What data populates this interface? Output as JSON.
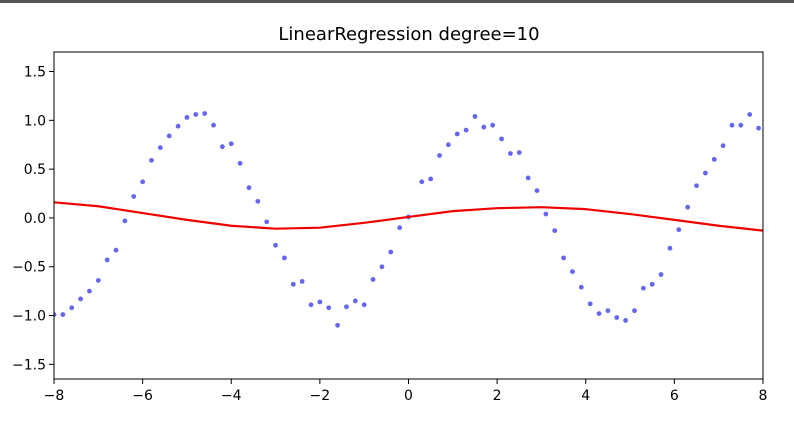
{
  "chart_data": {
    "type": "scatter",
    "title": "LinearRegression degree=10",
    "xlabel": "",
    "ylabel": "",
    "xlim": [
      -8,
      8
    ],
    "ylim": [
      -1.65,
      1.7
    ],
    "x_ticks": [
      -8,
      -6,
      -4,
      -2,
      0,
      2,
      4,
      6,
      8
    ],
    "x_tick_labels": [
      "−8",
      "−6",
      "−4",
      "−2",
      "0",
      "2",
      "4",
      "6",
      "8"
    ],
    "y_ticks": [
      -1.5,
      -1.0,
      -0.5,
      0.0,
      0.5,
      1.0,
      1.5
    ],
    "y_tick_labels": [
      "−1.5",
      "−1.0",
      "−0.5",
      "0.0",
      "0.5",
      "1.0",
      "1.5"
    ],
    "grid": false,
    "series": [
      {
        "kind": "scatter",
        "color": "#6666ee",
        "points": [
          [
            -8.0,
            -0.99
          ],
          [
            -7.8,
            -0.99
          ],
          [
            -7.6,
            -0.92
          ],
          [
            -7.4,
            -0.83
          ],
          [
            -7.2,
            -0.75
          ],
          [
            -7.0,
            -0.64
          ],
          [
            -6.8,
            -0.43
          ],
          [
            -6.6,
            -0.33
          ],
          [
            -6.4,
            -0.03
          ],
          [
            -6.2,
            0.22
          ],
          [
            -6.0,
            0.37
          ],
          [
            -5.8,
            0.59
          ],
          [
            -5.6,
            0.72
          ],
          [
            -5.4,
            0.84
          ],
          [
            -5.2,
            0.94
          ],
          [
            -5.0,
            1.03
          ],
          [
            -4.8,
            1.06
          ],
          [
            -4.6,
            1.07
          ],
          [
            -4.4,
            0.95
          ],
          [
            -4.2,
            0.73
          ],
          [
            -4.0,
            0.76
          ],
          [
            -3.8,
            0.56
          ],
          [
            -3.6,
            0.31
          ],
          [
            -3.4,
            0.17
          ],
          [
            -3.2,
            -0.04
          ],
          [
            -3.0,
            -0.28
          ],
          [
            -2.8,
            -0.41
          ],
          [
            -2.6,
            -0.68
          ],
          [
            -2.4,
            -0.65
          ],
          [
            -2.2,
            -0.89
          ],
          [
            -2.0,
            -0.86
          ],
          [
            -1.8,
            -0.92
          ],
          [
            -1.6,
            -1.1
          ],
          [
            -1.4,
            -0.91
          ],
          [
            -1.2,
            -0.85
          ],
          [
            -1.0,
            -0.89
          ],
          [
            -0.8,
            -0.63
          ],
          [
            -0.6,
            -0.5
          ],
          [
            -0.4,
            -0.35
          ],
          [
            -0.2,
            -0.1
          ],
          [
            0.0,
            0.01
          ],
          [
            0.3,
            0.37
          ],
          [
            0.5,
            0.4
          ],
          [
            0.7,
            0.64
          ],
          [
            0.9,
            0.75
          ],
          [
            1.1,
            0.86
          ],
          [
            1.3,
            0.9
          ],
          [
            1.5,
            1.04
          ],
          [
            1.7,
            0.93
          ],
          [
            1.9,
            0.95
          ],
          [
            2.1,
            0.81
          ],
          [
            2.3,
            0.66
          ],
          [
            2.5,
            0.67
          ],
          [
            2.7,
            0.41
          ],
          [
            2.9,
            0.28
          ],
          [
            3.1,
            0.04
          ],
          [
            3.3,
            -0.13
          ],
          [
            3.5,
            -0.41
          ],
          [
            3.7,
            -0.55
          ],
          [
            3.9,
            -0.71
          ],
          [
            4.1,
            -0.88
          ],
          [
            4.3,
            -0.98
          ],
          [
            4.5,
            -0.95
          ],
          [
            4.7,
            -1.02
          ],
          [
            4.9,
            -1.05
          ],
          [
            5.1,
            -0.95
          ],
          [
            5.3,
            -0.72
          ],
          [
            5.5,
            -0.68
          ],
          [
            5.7,
            -0.58
          ],
          [
            5.9,
            -0.31
          ],
          [
            6.1,
            -0.12
          ],
          [
            6.3,
            0.11
          ],
          [
            6.5,
            0.33
          ],
          [
            6.7,
            0.46
          ],
          [
            6.9,
            0.6
          ],
          [
            7.1,
            0.74
          ],
          [
            7.3,
            0.95
          ],
          [
            7.5,
            0.95
          ],
          [
            7.7,
            1.06
          ],
          [
            7.9,
            0.92
          ]
        ]
      },
      {
        "kind": "line",
        "color": "#ee0000",
        "points": [
          [
            -8.0,
            0.16
          ],
          [
            -7.0,
            0.12
          ],
          [
            -6.0,
            0.05
          ],
          [
            -5.0,
            -0.02
          ],
          [
            -4.0,
            -0.08
          ],
          [
            -3.0,
            -0.11
          ],
          [
            -2.0,
            -0.1
          ],
          [
            -1.0,
            -0.05
          ],
          [
            0.0,
            0.01
          ],
          [
            1.0,
            0.07
          ],
          [
            2.0,
            0.1
          ],
          [
            3.0,
            0.11
          ],
          [
            4.0,
            0.09
          ],
          [
            5.0,
            0.04
          ],
          [
            6.0,
            -0.02
          ],
          [
            7.0,
            -0.08
          ],
          [
            8.0,
            -0.13
          ]
        ]
      }
    ]
  }
}
